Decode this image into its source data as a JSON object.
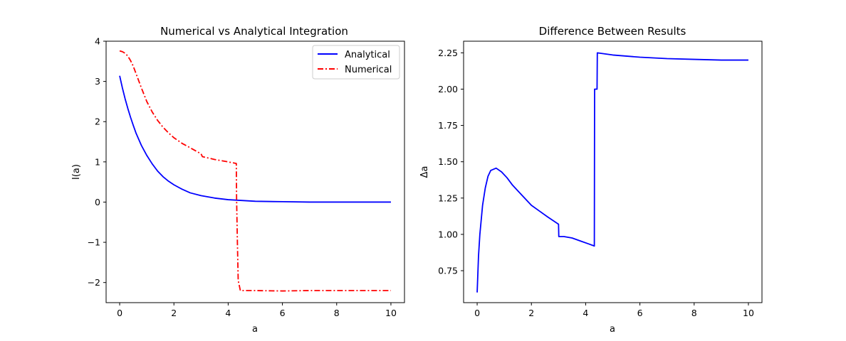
{
  "chart_data": [
    {
      "type": "line",
      "title": "Numerical vs Analytical Integration",
      "xlabel": "a",
      "ylabel": "I(a)",
      "xlim": [
        -0.5,
        10.5
      ],
      "ylim": [
        -2.5,
        4.0
      ],
      "xticks": [
        0,
        2,
        4,
        6,
        8,
        10
      ],
      "xtick_labels": [
        "0",
        "2",
        "4",
        "6",
        "8",
        "10"
      ],
      "yticks": [
        -2,
        -1,
        0,
        1,
        2,
        3,
        4
      ],
      "ytick_labels": [
        "−2",
        "−1",
        "0",
        "1",
        "2",
        "3",
        "4"
      ],
      "grid": false,
      "legend": "top-right",
      "series": [
        {
          "name": "Analytical",
          "color": "#0000ff",
          "linestyle": "solid",
          "points": [
            [
              0,
              3.14
            ],
            [
              0.1,
              2.84
            ],
            [
              0.2,
              2.57
            ],
            [
              0.3,
              2.33
            ],
            [
              0.4,
              2.11
            ],
            [
              0.5,
              1.91
            ],
            [
              0.6,
              1.72
            ],
            [
              0.8,
              1.41
            ],
            [
              1.0,
              1.16
            ],
            [
              1.2,
              0.95
            ],
            [
              1.4,
              0.77
            ],
            [
              1.6,
              0.63
            ],
            [
              1.8,
              0.52
            ],
            [
              2.0,
              0.43
            ],
            [
              2.3,
              0.32
            ],
            [
              2.6,
              0.23
            ],
            [
              3.0,
              0.16
            ],
            [
              3.5,
              0.1
            ],
            [
              4.0,
              0.06
            ],
            [
              4.5,
              0.04
            ],
            [
              5.0,
              0.02
            ],
            [
              6.0,
              0.01
            ],
            [
              7.0,
              0.0
            ],
            [
              8.0,
              0.0
            ],
            [
              9.0,
              0.0
            ],
            [
              10.0,
              0.0
            ]
          ]
        },
        {
          "name": "Numerical",
          "color": "#ff0000",
          "linestyle": "dashdot",
          "points": [
            [
              0,
              3.76
            ],
            [
              0.1,
              3.74
            ],
            [
              0.2,
              3.7
            ],
            [
              0.3,
              3.63
            ],
            [
              0.4,
              3.52
            ],
            [
              0.5,
              3.38
            ],
            [
              0.6,
              3.2
            ],
            [
              0.8,
              2.84
            ],
            [
              1.0,
              2.5
            ],
            [
              1.2,
              2.24
            ],
            [
              1.4,
              2.03
            ],
            [
              1.6,
              1.86
            ],
            [
              1.8,
              1.72
            ],
            [
              2.0,
              1.6
            ],
            [
              2.3,
              1.46
            ],
            [
              2.6,
              1.35
            ],
            [
              3.0,
              1.2
            ],
            [
              3.05,
              1.13
            ],
            [
              3.5,
              1.06
            ],
            [
              4.0,
              1.0
            ],
            [
              4.3,
              0.96
            ],
            [
              4.31,
              0.1
            ],
            [
              4.34,
              -1.0
            ],
            [
              4.37,
              -1.95
            ],
            [
              4.45,
              -2.2
            ],
            [
              5.0,
              -2.2
            ],
            [
              6.0,
              -2.21
            ],
            [
              7.0,
              -2.2
            ],
            [
              8.0,
              -2.2
            ],
            [
              9.0,
              -2.2
            ],
            [
              10.0,
              -2.2
            ]
          ]
        }
      ]
    },
    {
      "type": "line",
      "title": "Difference Between Results",
      "xlabel": "a",
      "ylabel": "Δa",
      "xlim": [
        -0.5,
        10.5
      ],
      "ylim": [
        0.53,
        2.33
      ],
      "xticks": [
        0,
        2,
        4,
        6,
        8,
        10
      ],
      "xtick_labels": [
        "0",
        "2",
        "4",
        "6",
        "8",
        "10"
      ],
      "yticks": [
        0.75,
        1.0,
        1.25,
        1.5,
        1.75,
        2.0,
        2.25
      ],
      "ytick_labels": [
        "0.75",
        "1.00",
        "1.25",
        "1.50",
        "1.75",
        "2.00",
        "2.25"
      ],
      "grid": false,
      "series": [
        {
          "color": "#0000ff",
          "linestyle": "solid",
          "points": [
            [
              0,
              0.6
            ],
            [
              0.05,
              0.85
            ],
            [
              0.1,
              1.0
            ],
            [
              0.2,
              1.2
            ],
            [
              0.3,
              1.32
            ],
            [
              0.4,
              1.4
            ],
            [
              0.5,
              1.44
            ],
            [
              0.7,
              1.456
            ],
            [
              0.9,
              1.43
            ],
            [
              1.1,
              1.39
            ],
            [
              1.3,
              1.34
            ],
            [
              1.5,
              1.3
            ],
            [
              1.8,
              1.24
            ],
            [
              2.0,
              1.2
            ],
            [
              2.3,
              1.16
            ],
            [
              2.6,
              1.12
            ],
            [
              3.0,
              1.07
            ],
            [
              3.01,
              0.985
            ],
            [
              3.2,
              0.985
            ],
            [
              3.5,
              0.975
            ],
            [
              3.8,
              0.955
            ],
            [
              4.1,
              0.935
            ],
            [
              4.32,
              0.92
            ],
            [
              4.33,
              2.0
            ],
            [
              4.42,
              2.0
            ],
            [
              4.43,
              2.25
            ],
            [
              5.0,
              2.235
            ],
            [
              6.0,
              2.22
            ],
            [
              7.0,
              2.21
            ],
            [
              8.0,
              2.205
            ],
            [
              9.0,
              2.2
            ],
            [
              10.0,
              2.2
            ]
          ]
        }
      ]
    }
  ]
}
